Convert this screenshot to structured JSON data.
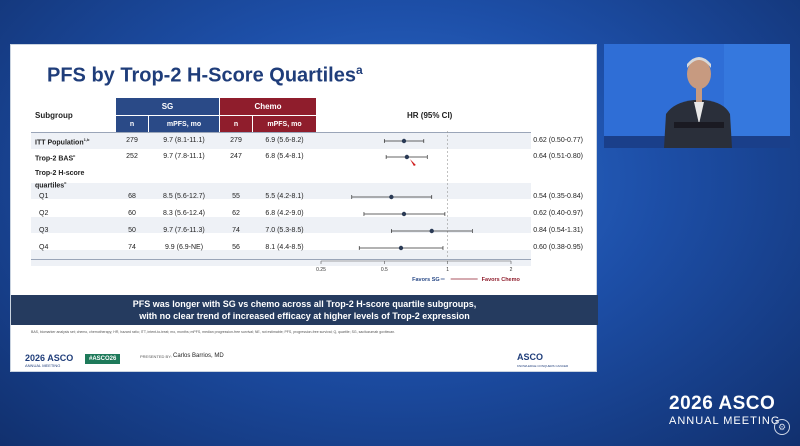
{
  "slide": {
    "title": "PFS by Trop-2 H-Score Quartiles",
    "title_sup": "a",
    "headers": {
      "subgroup": "Subgroup",
      "sg": "SG",
      "chemo": "Chemo",
      "n": "n",
      "mpfs": "mPFS, mo",
      "hr": "HR (95% CI)"
    },
    "rows": [
      {
        "label": "ITT Population",
        "sup": "1,b",
        "bold": true,
        "sg_n": "279",
        "sg_mpfs": "9.7 (8.1-11.1)",
        "ch_n": "279",
        "ch_mpfs": "6.9 (5.6-8.2)",
        "hr": "0.62 (0.50-0.77)",
        "est": 0.62,
        "lo": 0.5,
        "hi": 0.77
      },
      {
        "label": "Trop-2 BAS",
        "sup": "c",
        "bold": true,
        "sg_n": "252",
        "sg_mpfs": "9.7 (7.8-11.1)",
        "ch_n": "247",
        "ch_mpfs": "6.8 (5.4-8.1)",
        "hr": "0.64 (0.51-0.80)",
        "est": 0.64,
        "lo": 0.51,
        "hi": 0.8
      },
      {
        "label": "Q1",
        "sup": "",
        "bold": false,
        "sg_n": "68",
        "sg_mpfs": "8.5 (5.6-12.7)",
        "ch_n": "55",
        "ch_mpfs": "5.5 (4.2-8.1)",
        "hr": "0.54 (0.35-0.84)",
        "est": 0.54,
        "lo": 0.35,
        "hi": 0.84
      },
      {
        "label": "Q2",
        "sup": "",
        "bold": false,
        "sg_n": "60",
        "sg_mpfs": "8.3 (5.6-12.4)",
        "ch_n": "62",
        "ch_mpfs": "6.8 (4.2-9.0)",
        "hr": "0.62 (0.40-0.97)",
        "est": 0.62,
        "lo": 0.4,
        "hi": 0.97
      },
      {
        "label": "Q3",
        "sup": "",
        "bold": false,
        "sg_n": "50",
        "sg_mpfs": "9.7 (7.6-11.3)",
        "ch_n": "74",
        "ch_mpfs": "7.0 (5.3-8.5)",
        "hr": "0.84 (0.54-1.31)",
        "est": 0.84,
        "lo": 0.54,
        "hi": 1.31
      },
      {
        "label": "Q4",
        "sup": "",
        "bold": false,
        "sg_n": "74",
        "sg_mpfs": "9.9 (6.9-NE)",
        "ch_n": "56",
        "ch_mpfs": "8.1 (4.4-8.5)",
        "hr": "0.60 (0.38-0.95)",
        "est": 0.6,
        "lo": 0.38,
        "hi": 0.95
      }
    ],
    "quartile_heading_1": "Trop-2 H-score",
    "quartile_heading_2": "quartiles",
    "quartile_heading_sup": "c",
    "axis_ticks": [
      "0.25",
      "0.5",
      "1",
      "2"
    ],
    "favors_sg": "Favors SG",
    "favors_chemo": "Favors Chemo",
    "banner_line1": "PFS was longer with SG vs chemo across all Trop-2 H-score quartile subgroups,",
    "banner_line2": "with no clear trend of increased efficacy at higher levels of Trop-2 expression",
    "footnote": "BAS, biomarker analysis set; chemo, chemotherapy; HR, hazard ratio; ITT, intent-to-treat; mo, months; mPFS, median progression-free survival; NE, not estimable; PFS, progression-free survival; Q, quartile; SG, sacituzumab govitecan.",
    "footer_year_brand": "2026 ASCO",
    "footer_meeting": "ANNUAL MEETING",
    "footer_hashtag": "#ASCO26",
    "presenter_label": "PRESENTED BY:",
    "presenter_name": "Carlos Barrios, MD",
    "footer_right_brand": "ASCO",
    "footer_right_tag": "KNOWLEDGE CONQUERS CANCER"
  },
  "brand": {
    "year_brand": "2026 ASCO",
    "meeting": "ANNUAL MEETING"
  },
  "colors": {
    "sg": "#2a4a87",
    "chemo": "#8f1d2c",
    "title": "#1f3d7a",
    "banner": "#253b5f"
  }
}
